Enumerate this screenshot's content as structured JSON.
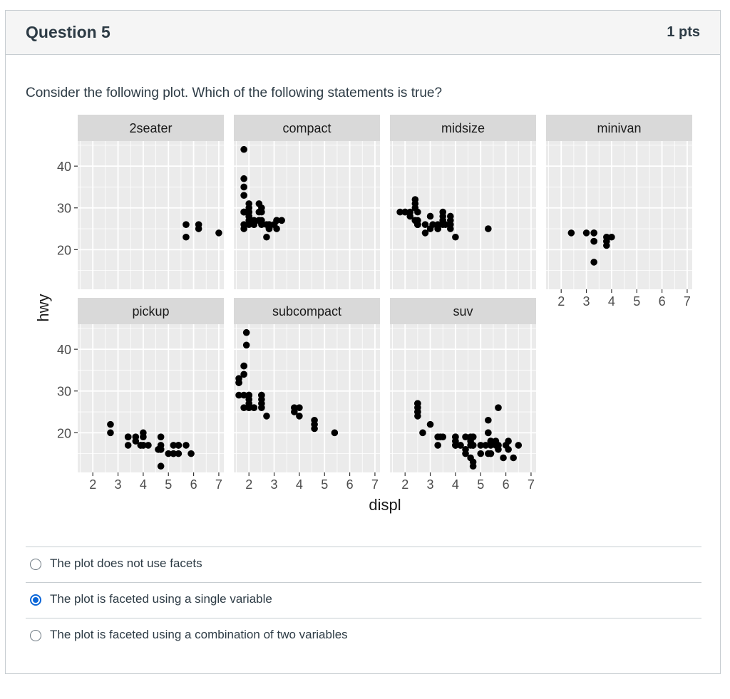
{
  "question": {
    "title": "Question 5",
    "points": "1 pts",
    "text": "Consider the following plot. Which of the following statements is true?"
  },
  "answers": [
    {
      "label": "The plot does not use facets",
      "selected": false
    },
    {
      "label": "The plot is faceted using a single variable",
      "selected": true
    },
    {
      "label": "The plot is faceted using a combination of two variables",
      "selected": false
    }
  ],
  "chart_data": {
    "type": "scatter",
    "xlabel": "displ",
    "ylabel": "hwy",
    "xlim": [
      1.4,
      7.2
    ],
    "ylim": [
      10.5,
      46
    ],
    "xticks": [
      2,
      3,
      4,
      5,
      6,
      7
    ],
    "yticks": [
      20,
      30,
      40
    ],
    "grid": true,
    "facets": [
      {
        "name": "2seater",
        "points": [
          [
            5.7,
            26
          ],
          [
            5.7,
            23
          ],
          [
            6.2,
            26
          ],
          [
            6.2,
            25
          ],
          [
            7.0,
            24
          ]
        ]
      },
      {
        "name": "compact",
        "points": [
          [
            1.8,
            29
          ],
          [
            1.8,
            29
          ],
          [
            2.0,
            31
          ],
          [
            2.0,
            30
          ],
          [
            2.8,
            26
          ],
          [
            2.8,
            26
          ],
          [
            3.1,
            27
          ],
          [
            1.8,
            26
          ],
          [
            1.8,
            25
          ],
          [
            2.0,
            28
          ],
          [
            2.0,
            27
          ],
          [
            2.8,
            25
          ],
          [
            2.8,
            25
          ],
          [
            2.8,
            25
          ],
          [
            3.1,
            25
          ],
          [
            3.1,
            27
          ],
          [
            2.2,
            26
          ],
          [
            2.2,
            26
          ],
          [
            2.4,
            27
          ],
          [
            2.4,
            27
          ],
          [
            3.0,
            26
          ],
          [
            3.0,
            26
          ],
          [
            3.3,
            27
          ],
          [
            1.8,
            29
          ],
          [
            1.8,
            33
          ],
          [
            1.8,
            35
          ],
          [
            1.8,
            37
          ],
          [
            1.8,
            44
          ],
          [
            2.0,
            26
          ],
          [
            2.0,
            29
          ],
          [
            2.4,
            31
          ],
          [
            2.4,
            29
          ],
          [
            2.5,
            30
          ],
          [
            2.5,
            26
          ],
          [
            2.7,
            26
          ],
          [
            2.7,
            23
          ],
          [
            2.2,
            27
          ],
          [
            2.0,
            28
          ],
          [
            1.9,
            29
          ],
          [
            2.0,
            29
          ],
          [
            2.0,
            28
          ],
          [
            2.5,
            29
          ],
          [
            2.5,
            27
          ]
        ]
      },
      {
        "name": "midsize",
        "points": [
          [
            2.4,
            27
          ],
          [
            2.4,
            30
          ],
          [
            3.1,
            26
          ],
          [
            3.5,
            29
          ],
          [
            3.6,
            26
          ],
          [
            2.4,
            31
          ],
          [
            2.4,
            32
          ],
          [
            2.5,
            26
          ],
          [
            2.5,
            27
          ],
          [
            3.3,
            25
          ],
          [
            3.3,
            25
          ],
          [
            3.8,
            26
          ],
          [
            3.8,
            25
          ],
          [
            3.8,
            27
          ],
          [
            5.3,
            25
          ],
          [
            2.5,
            26
          ],
          [
            2.5,
            26
          ],
          [
            2.5,
            26
          ],
          [
            2.8,
            24
          ],
          [
            2.8,
            26
          ],
          [
            3.5,
            26
          ],
          [
            3.5,
            27
          ],
          [
            1.8,
            29
          ],
          [
            2.0,
            29
          ],
          [
            2.2,
            28
          ],
          [
            2.2,
            29
          ],
          [
            2.4,
            27
          ],
          [
            2.5,
            29
          ],
          [
            3.0,
            28
          ],
          [
            3.5,
            28
          ],
          [
            3.0,
            25
          ],
          [
            3.8,
            28
          ],
          [
            4.0,
            23
          ],
          [
            3.3,
            26
          ],
          [
            3.5,
            27
          ],
          [
            2.0,
            29
          ]
        ]
      },
      {
        "name": "minivan",
        "points": [
          [
            2.4,
            24
          ],
          [
            3.0,
            24
          ],
          [
            3.3,
            22
          ],
          [
            3.3,
            22
          ],
          [
            3.3,
            24
          ],
          [
            3.3,
            24
          ],
          [
            3.3,
            17
          ],
          [
            3.8,
            22
          ],
          [
            3.8,
            21
          ],
          [
            3.8,
            23
          ],
          [
            4.0,
            23
          ]
        ]
      },
      {
        "name": "pickup",
        "points": [
          [
            2.7,
            20
          ],
          [
            2.7,
            22
          ],
          [
            3.4,
            19
          ],
          [
            3.4,
            17
          ],
          [
            4.0,
            17
          ],
          [
            4.7,
            17
          ],
          [
            4.7,
            16
          ],
          [
            4.7,
            12
          ],
          [
            5.2,
            17
          ],
          [
            5.2,
            15
          ],
          [
            5.7,
            17
          ],
          [
            5.9,
            15
          ],
          [
            3.7,
            19
          ],
          [
            3.7,
            18
          ],
          [
            3.9,
            17
          ],
          [
            3.9,
            17
          ],
          [
            4.7,
            16
          ],
          [
            4.7,
            16
          ],
          [
            5.2,
            15
          ],
          [
            4.7,
            19
          ],
          [
            4.2,
            17
          ],
          [
            4.6,
            16
          ],
          [
            5.4,
            17
          ],
          [
            5.4,
            15
          ],
          [
            4.0,
            20
          ],
          [
            4.0,
            17
          ],
          [
            4.6,
            16
          ],
          [
            5.0,
            15
          ],
          [
            4.0,
            19
          ],
          [
            3.4,
            19
          ],
          [
            5.4,
            17
          ]
        ]
      },
      {
        "name": "subcompact",
        "points": [
          [
            2.0,
            26
          ],
          [
            2.0,
            29
          ],
          [
            1.8,
            29
          ],
          [
            1.8,
            26
          ],
          [
            2.0,
            29
          ],
          [
            2.0,
            27
          ],
          [
            3.8,
            26
          ],
          [
            3.8,
            25
          ],
          [
            4.0,
            26
          ],
          [
            4.0,
            24
          ],
          [
            4.6,
            21
          ],
          [
            4.6,
            22
          ],
          [
            4.6,
            23
          ],
          [
            5.4,
            20
          ],
          [
            1.6,
            33
          ],
          [
            1.6,
            32
          ],
          [
            1.6,
            32
          ],
          [
            1.6,
            29
          ],
          [
            1.6,
            32
          ],
          [
            1.8,
            34
          ],
          [
            1.8,
            36
          ],
          [
            1.8,
            36
          ],
          [
            2.0,
            29
          ],
          [
            2.0,
            26
          ],
          [
            2.5,
            27
          ],
          [
            2.5,
            29
          ],
          [
            2.5,
            28
          ],
          [
            2.5,
            29
          ],
          [
            2.7,
            24
          ],
          [
            1.9,
            44
          ],
          [
            2.2,
            26
          ],
          [
            1.9,
            41
          ],
          [
            2.0,
            28
          ],
          [
            2.5,
            26
          ],
          [
            2.2,
            26
          ]
        ]
      },
      {
        "name": "suv",
        "points": [
          [
            5.3,
            20
          ],
          [
            5.3,
            15
          ],
          [
            5.3,
            20
          ],
          [
            5.7,
            17
          ],
          [
            6.0,
            17
          ],
          [
            5.7,
            26
          ],
          [
            5.3,
            23
          ],
          [
            2.5,
            26
          ],
          [
            2.5,
            25
          ],
          [
            2.5,
            24
          ],
          [
            2.5,
            27
          ],
          [
            2.5,
            25
          ],
          [
            2.5,
            27
          ],
          [
            2.7,
            20
          ],
          [
            3.0,
            22
          ],
          [
            4.0,
            19
          ],
          [
            4.0,
            17
          ],
          [
            4.0,
            19
          ],
          [
            4.6,
            17
          ],
          [
            5.0,
            17
          ],
          [
            4.7,
            17
          ],
          [
            4.7,
            19
          ],
          [
            4.7,
            19
          ],
          [
            4.7,
            17
          ],
          [
            5.7,
            17
          ],
          [
            6.1,
            18
          ],
          [
            4.0,
            18
          ],
          [
            4.2,
            17
          ],
          [
            4.4,
            15
          ],
          [
            4.6,
            14
          ],
          [
            5.4,
            18
          ],
          [
            5.4,
            18
          ],
          [
            5.4,
            15
          ],
          [
            4.0,
            18
          ],
          [
            4.0,
            17
          ],
          [
            4.6,
            19
          ],
          [
            5.0,
            15
          ],
          [
            4.2,
            17
          ],
          [
            4.4,
            19
          ],
          [
            4.7,
            17
          ],
          [
            5.4,
            17
          ],
          [
            5.4,
            15
          ],
          [
            5.7,
            16
          ],
          [
            6.5,
            17
          ],
          [
            3.3,
            19
          ],
          [
            3.3,
            17
          ],
          [
            3.5,
            19
          ],
          [
            4.7,
            12
          ],
          [
            5.6,
            18
          ],
          [
            6.1,
            16
          ],
          [
            6.3,
            14
          ],
          [
            3.4,
            19
          ],
          [
            4.0,
            17
          ],
          [
            4.7,
            13
          ],
          [
            5.9,
            14
          ],
          [
            4.4,
            16
          ],
          [
            5.6,
            17
          ],
          [
            4.6,
            18
          ],
          [
            5.2,
            17
          ]
        ]
      }
    ]
  }
}
